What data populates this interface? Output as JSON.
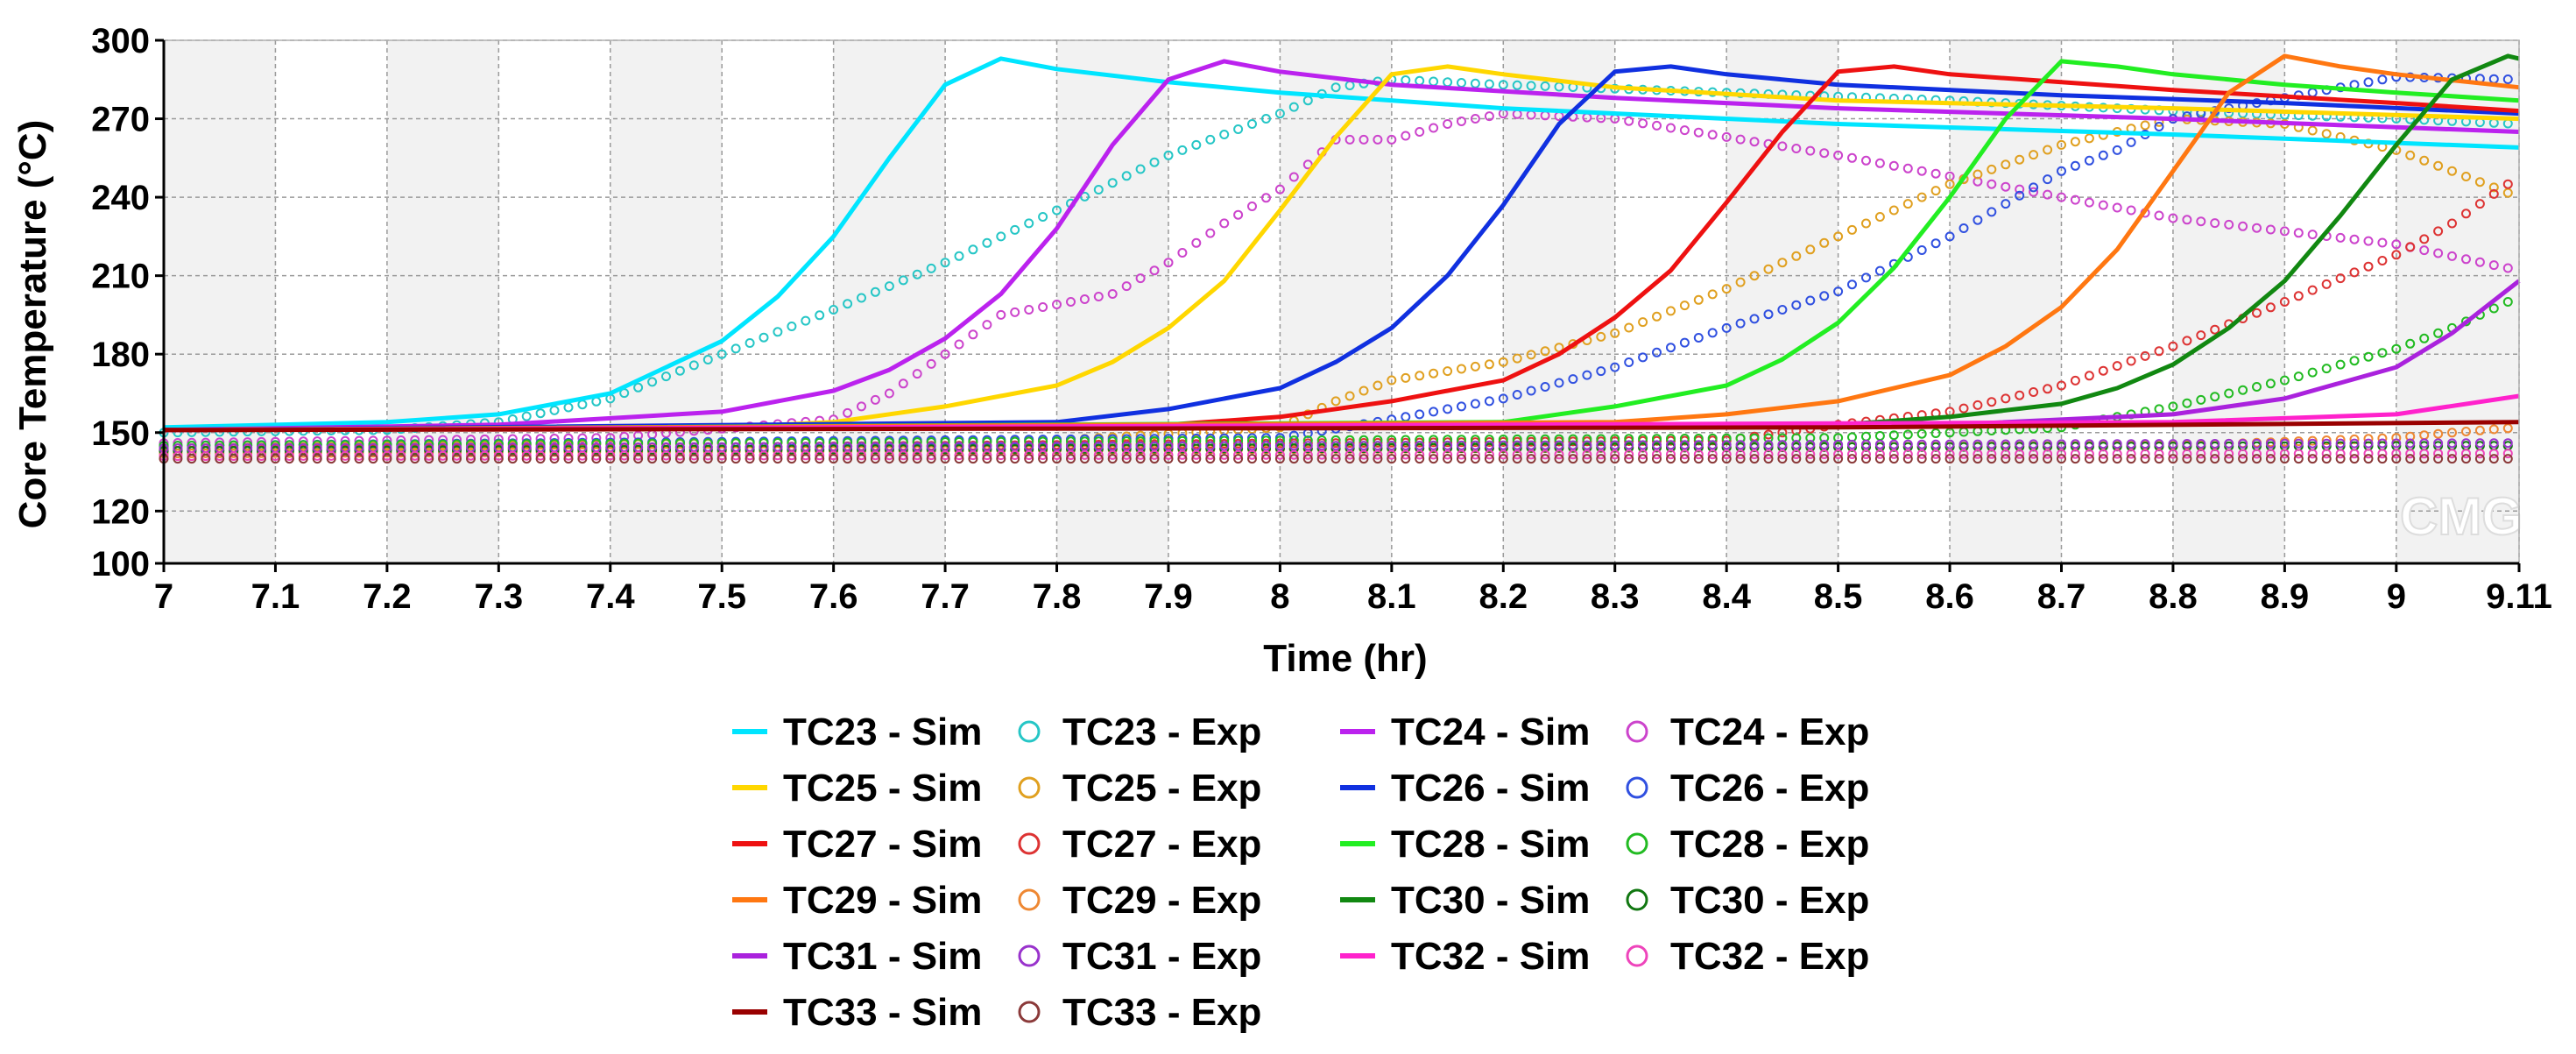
{
  "chart_data": {
    "type": "line",
    "title": "",
    "xlabel": "Time (hr)",
    "ylabel": "Core Temperature (°C)",
    "xlim": [
      7,
      9.11
    ],
    "ylim": [
      100,
      300
    ],
    "x_ticks": [
      "7",
      "7.1",
      "7.2",
      "7.3",
      "7.4",
      "7.5",
      "7.6",
      "7.7",
      "7.8",
      "7.9",
      "8",
      "8.1",
      "8.2",
      "8.3",
      "8.4",
      "8.5",
      "8.6",
      "8.7",
      "8.8",
      "8.9",
      "9",
      "9.11"
    ],
    "y_ticks": [
      "100",
      "120",
      "150",
      "180",
      "210",
      "240",
      "270",
      "300"
    ],
    "grid": true,
    "watermark": "CMG",
    "legend_position": "bottom",
    "series": [
      {
        "name": "TC23 - Sim",
        "style": "line",
        "color": "#00e5ff",
        "points": [
          [
            7,
            152
          ],
          [
            7.2,
            154
          ],
          [
            7.3,
            157
          ],
          [
            7.4,
            165
          ],
          [
            7.5,
            185
          ],
          [
            7.55,
            202
          ],
          [
            7.6,
            225
          ],
          [
            7.65,
            255
          ],
          [
            7.7,
            283
          ],
          [
            7.75,
            293
          ],
          [
            7.8,
            289
          ],
          [
            7.9,
            284
          ],
          [
            8,
            280
          ],
          [
            8.2,
            274
          ],
          [
            8.5,
            268
          ],
          [
            8.8,
            264
          ],
          [
            9.11,
            259
          ]
        ]
      },
      {
        "name": "TC23 - Exp",
        "style": "marker",
        "color": "#26c6c6",
        "points": [
          [
            7,
            150
          ],
          [
            7.2,
            151
          ],
          [
            7.3,
            154
          ],
          [
            7.4,
            163
          ],
          [
            7.5,
            180
          ],
          [
            7.6,
            197
          ],
          [
            7.7,
            215
          ],
          [
            7.8,
            235
          ],
          [
            7.9,
            256
          ],
          [
            8,
            272
          ],
          [
            8.05,
            282
          ],
          [
            8.1,
            285
          ],
          [
            8.2,
            283
          ],
          [
            8.4,
            280
          ],
          [
            8.6,
            277
          ],
          [
            8.8,
            273
          ],
          [
            9,
            270
          ],
          [
            9.11,
            268
          ]
        ]
      },
      {
        "name": "TC24 - Sim",
        "style": "line",
        "color": "#bb22ee",
        "points": [
          [
            7,
            151
          ],
          [
            7.3,
            153
          ],
          [
            7.5,
            158
          ],
          [
            7.6,
            166
          ],
          [
            7.65,
            174
          ],
          [
            7.7,
            186
          ],
          [
            7.75,
            203
          ],
          [
            7.8,
            228
          ],
          [
            7.85,
            260
          ],
          [
            7.9,
            285
          ],
          [
            7.95,
            292
          ],
          [
            8,
            288
          ],
          [
            8.1,
            283
          ],
          [
            8.3,
            278
          ],
          [
            8.5,
            274
          ],
          [
            8.8,
            270
          ],
          [
            9.11,
            265
          ]
        ]
      },
      {
        "name": "TC24 - Exp",
        "style": "marker",
        "color": "#cc44cc",
        "points": [
          [
            7,
            146
          ],
          [
            7.4,
            148
          ],
          [
            7.6,
            155
          ],
          [
            7.65,
            165
          ],
          [
            7.7,
            180
          ],
          [
            7.75,
            195
          ],
          [
            7.8,
            199
          ],
          [
            7.85,
            203
          ],
          [
            7.9,
            215
          ],
          [
            7.95,
            230
          ],
          [
            8,
            243
          ],
          [
            8.05,
            262
          ],
          [
            8.1,
            262
          ],
          [
            8.15,
            268
          ],
          [
            8.2,
            272
          ],
          [
            8.3,
            270
          ],
          [
            8.4,
            263
          ],
          [
            8.5,
            256
          ],
          [
            8.6,
            248
          ],
          [
            8.7,
            240
          ],
          [
            8.8,
            232
          ],
          [
            9,
            222
          ],
          [
            9.11,
            212
          ]
        ]
      },
      {
        "name": "TC25 - Sim",
        "style": "line",
        "color": "#ffd700",
        "points": [
          [
            7,
            151
          ],
          [
            7.5,
            152
          ],
          [
            7.6,
            154
          ],
          [
            7.7,
            160
          ],
          [
            7.8,
            168
          ],
          [
            7.85,
            177
          ],
          [
            7.9,
            190
          ],
          [
            7.95,
            208
          ],
          [
            8,
            235
          ],
          [
            8.05,
            263
          ],
          [
            8.1,
            287
          ],
          [
            8.15,
            290
          ],
          [
            8.2,
            287
          ],
          [
            8.3,
            282
          ],
          [
            8.5,
            277
          ],
          [
            8.8,
            274
          ],
          [
            9.11,
            270
          ]
        ]
      },
      {
        "name": "TC25 - Exp",
        "style": "marker",
        "color": "#e0a020",
        "points": [
          [
            7,
            144
          ],
          [
            7.8,
            147
          ],
          [
            8,
            152
          ],
          [
            8.05,
            162
          ],
          [
            8.1,
            170
          ],
          [
            8.2,
            177
          ],
          [
            8.3,
            188
          ],
          [
            8.4,
            205
          ],
          [
            8.5,
            225
          ],
          [
            8.6,
            245
          ],
          [
            8.7,
            260
          ],
          [
            8.8,
            270
          ],
          [
            8.9,
            268
          ],
          [
            9,
            258
          ],
          [
            9.05,
            250
          ],
          [
            9.11,
            240
          ]
        ]
      },
      {
        "name": "TC26 - Sim",
        "style": "line",
        "color": "#1030e0",
        "points": [
          [
            7,
            151
          ],
          [
            7.8,
            154
          ],
          [
            7.9,
            159
          ],
          [
            8,
            167
          ],
          [
            8.05,
            177
          ],
          [
            8.1,
            190
          ],
          [
            8.15,
            210
          ],
          [
            8.2,
            237
          ],
          [
            8.25,
            268
          ],
          [
            8.3,
            288
          ],
          [
            8.35,
            290
          ],
          [
            8.4,
            287
          ],
          [
            8.5,
            283
          ],
          [
            8.7,
            279
          ],
          [
            8.9,
            276
          ],
          [
            9.11,
            272
          ]
        ]
      },
      {
        "name": "TC26 - Exp",
        "style": "marker",
        "color": "#3050e0",
        "points": [
          [
            7,
            145
          ],
          [
            8,
            148
          ],
          [
            8.1,
            155
          ],
          [
            8.2,
            163
          ],
          [
            8.3,
            175
          ],
          [
            8.4,
            190
          ],
          [
            8.5,
            204
          ],
          [
            8.6,
            225
          ],
          [
            8.7,
            250
          ],
          [
            8.75,
            258
          ],
          [
            8.8,
            270
          ],
          [
            8.9,
            278
          ],
          [
            9,
            286
          ],
          [
            9.11,
            285
          ]
        ]
      },
      {
        "name": "TC27 - Sim",
        "style": "line",
        "color": "#ee1111",
        "points": [
          [
            7,
            151
          ],
          [
            7.9,
            153
          ],
          [
            8,
            156
          ],
          [
            8.1,
            162
          ],
          [
            8.2,
            170
          ],
          [
            8.25,
            180
          ],
          [
            8.3,
            194
          ],
          [
            8.35,
            212
          ],
          [
            8.4,
            238
          ],
          [
            8.45,
            265
          ],
          [
            8.5,
            288
          ],
          [
            8.55,
            290
          ],
          [
            8.6,
            287
          ],
          [
            8.8,
            281
          ],
          [
            9,
            276
          ],
          [
            9.11,
            273
          ]
        ]
      },
      {
        "name": "TC27 - Exp",
        "style": "marker",
        "color": "#dd3333",
        "points": [
          [
            7,
            143
          ],
          [
            8.4,
            147
          ],
          [
            8.5,
            153
          ],
          [
            8.6,
            158
          ],
          [
            8.7,
            168
          ],
          [
            8.8,
            183
          ],
          [
            8.9,
            200
          ],
          [
            9,
            218
          ],
          [
            9.05,
            230
          ],
          [
            9.11,
            248
          ]
        ]
      },
      {
        "name": "TC28 - Sim",
        "style": "line",
        "color": "#22ee22",
        "points": [
          [
            7,
            151
          ],
          [
            8.2,
            154
          ],
          [
            8.3,
            160
          ],
          [
            8.4,
            168
          ],
          [
            8.45,
            178
          ],
          [
            8.5,
            192
          ],
          [
            8.55,
            213
          ],
          [
            8.6,
            240
          ],
          [
            8.65,
            270
          ],
          [
            8.7,
            292
          ],
          [
            8.75,
            290
          ],
          [
            8.8,
            287
          ],
          [
            8.9,
            283
          ],
          [
            9,
            280
          ],
          [
            9.11,
            277
          ]
        ]
      },
      {
        "name": "TC28 - Exp",
        "style": "marker",
        "color": "#22bb22",
        "points": [
          [
            7,
            145
          ],
          [
            8.5,
            148
          ],
          [
            8.7,
            152
          ],
          [
            8.8,
            160
          ],
          [
            8.9,
            170
          ],
          [
            9,
            182
          ],
          [
            9.05,
            190
          ],
          [
            9.11,
            202
          ]
        ]
      },
      {
        "name": "TC29 - Sim",
        "style": "line",
        "color": "#ff7711",
        "points": [
          [
            7,
            151
          ],
          [
            8.3,
            154
          ],
          [
            8.4,
            157
          ],
          [
            8.5,
            162
          ],
          [
            8.6,
            172
          ],
          [
            8.65,
            183
          ],
          [
            8.7,
            198
          ],
          [
            8.75,
            220
          ],
          [
            8.8,
            250
          ],
          [
            8.85,
            280
          ],
          [
            8.9,
            294
          ],
          [
            8.95,
            290
          ],
          [
            9,
            287
          ],
          [
            9.11,
            282
          ]
        ]
      },
      {
        "name": "TC29 - Exp",
        "style": "marker",
        "color": "#ee8833",
        "points": [
          [
            7,
            142
          ],
          [
            8.8,
            145
          ],
          [
            9,
            148
          ],
          [
            9.05,
            150
          ],
          [
            9.11,
            152
          ]
        ]
      },
      {
        "name": "TC30 - Sim",
        "style": "line",
        "color": "#118811",
        "points": [
          [
            7,
            151
          ],
          [
            8.5,
            153
          ],
          [
            8.6,
            156
          ],
          [
            8.7,
            161
          ],
          [
            8.75,
            167
          ],
          [
            8.8,
            176
          ],
          [
            8.85,
            190
          ],
          [
            8.9,
            208
          ],
          [
            8.95,
            233
          ],
          [
            9,
            260
          ],
          [
            9.05,
            285
          ],
          [
            9.1,
            294
          ],
          [
            9.11,
            293
          ]
        ]
      },
      {
        "name": "TC30 - Exp",
        "style": "marker",
        "color": "#117711",
        "points": [
          [
            7,
            143
          ],
          [
            9.11,
            145
          ]
        ]
      },
      {
        "name": "TC31 - Sim",
        "style": "line",
        "color": "#aa22dd",
        "points": [
          [
            7,
            151
          ],
          [
            8.6,
            153
          ],
          [
            8.8,
            157
          ],
          [
            8.9,
            163
          ],
          [
            9,
            175
          ],
          [
            9.05,
            188
          ],
          [
            9.11,
            208
          ]
        ]
      },
      {
        "name": "TC31 - Exp",
        "style": "marker",
        "color": "#9933cc",
        "points": [
          [
            7,
            144
          ],
          [
            9.11,
            146
          ]
        ]
      },
      {
        "name": "TC32 - Sim",
        "style": "line",
        "color": "#ff22cc",
        "points": [
          [
            7,
            151
          ],
          [
            8.8,
            154
          ],
          [
            9,
            157
          ],
          [
            9.11,
            164
          ]
        ]
      },
      {
        "name": "TC32 - Exp",
        "style": "marker",
        "color": "#ee44bb",
        "points": [
          [
            7,
            141
          ],
          [
            9.11,
            142
          ]
        ]
      },
      {
        "name": "TC33 - Sim",
        "style": "line",
        "color": "#990000",
        "points": [
          [
            7,
            151
          ],
          [
            8.5,
            152
          ],
          [
            9.11,
            154
          ]
        ]
      },
      {
        "name": "TC33 - Exp",
        "style": "marker",
        "color": "#8b3a3a",
        "points": [
          [
            7,
            140
          ],
          [
            9.11,
            140
          ]
        ]
      }
    ]
  }
}
